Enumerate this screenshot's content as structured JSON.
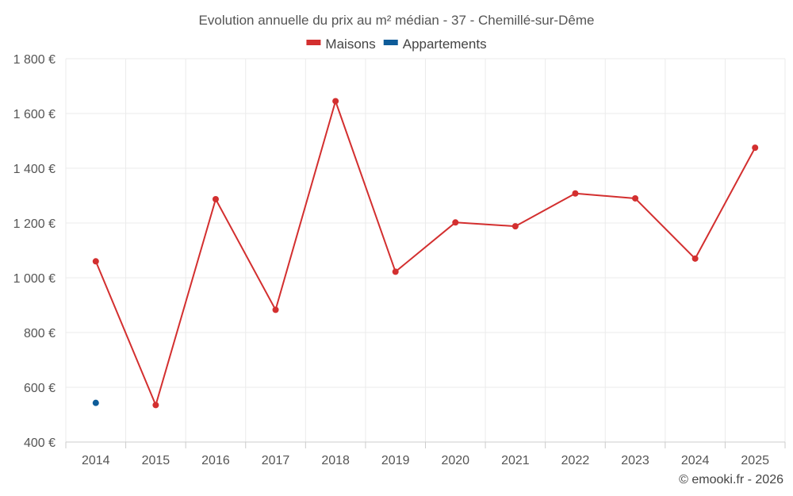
{
  "chart_data": {
    "type": "line",
    "title": "Evolution annuelle du prix au m² médian - 37 - Chemillé-sur-Dême",
    "xlabel": "",
    "ylabel": "",
    "categories": [
      "2014",
      "2015",
      "2016",
      "2017",
      "2018",
      "2019",
      "2020",
      "2021",
      "2022",
      "2023",
      "2024",
      "2025"
    ],
    "ylim": [
      400,
      1800
    ],
    "yticks": [
      400,
      600,
      800,
      1000,
      1200,
      1400,
      1600,
      1800
    ],
    "ytick_labels": [
      "400 €",
      "600 €",
      "800 €",
      "1 000 €",
      "1 200 €",
      "1 400 €",
      "1 600 €",
      "1 800 €"
    ],
    "grid": true,
    "legend_position": "top-center",
    "series": [
      {
        "name": "Maisons",
        "color": "#d32f2f",
        "values": [
          1060,
          535,
          1287,
          883,
          1645,
          1022,
          1202,
          1188,
          1308,
          1290,
          1070,
          1475
        ]
      },
      {
        "name": "Appartements",
        "color": "#0e5c99",
        "values": [
          543,
          null,
          null,
          null,
          null,
          null,
          null,
          null,
          null,
          null,
          null,
          null
        ]
      }
    ],
    "credit": "© emooki.fr - 2026"
  }
}
